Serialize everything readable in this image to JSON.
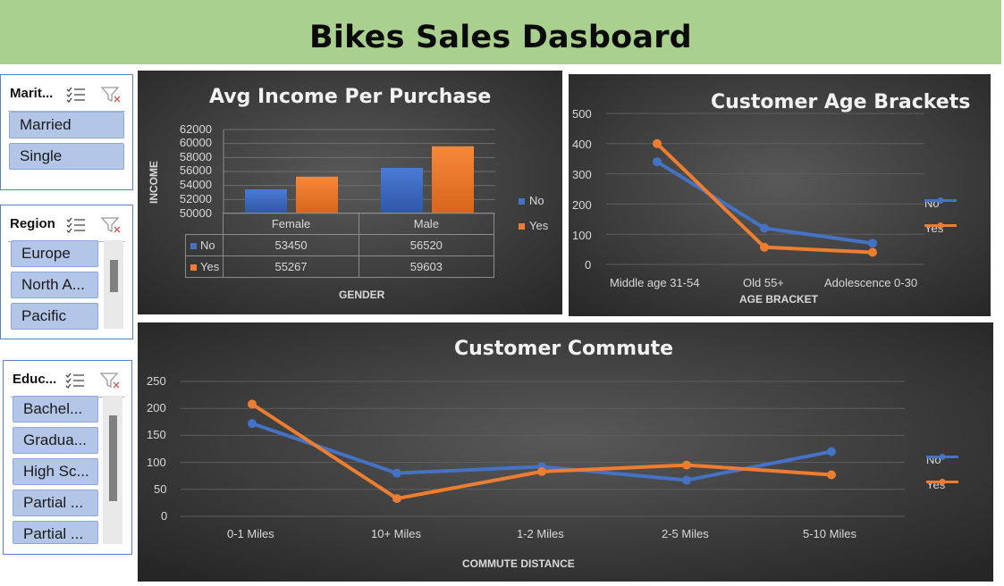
{
  "dashboard": {
    "title": "Bikes Sales Dasboard"
  },
  "slicers": {
    "marital": {
      "title": "Marit...",
      "items": [
        "Married",
        "Single"
      ]
    },
    "region": {
      "title": "Region",
      "items": [
        "Europe",
        "North A...",
        "Pacific"
      ]
    },
    "education": {
      "title": "Educ...",
      "items": [
        "Bachel...",
        "Gradua...",
        "High Sc...",
        "Partial ...",
        "Partial ..."
      ]
    }
  },
  "icons": [
    "multi-select-icon",
    "clear-filter-icon"
  ],
  "colors": {
    "no": "#4472c4",
    "yes": "#ed7d31",
    "banner": "#a9d08e"
  },
  "chart_data": [
    {
      "type": "bar",
      "title": "Avg Income Per Purchase",
      "xlabel": "GENDER",
      "ylabel": "INCOME",
      "categories": [
        "Female",
        "Male"
      ],
      "series": [
        {
          "name": "No",
          "values": [
            53450,
            56520
          ]
        },
        {
          "name": "Yes",
          "values": [
            55267,
            59603
          ]
        }
      ],
      "yticks": [
        "62000",
        "60000",
        "58000",
        "56000",
        "54000",
        "52000",
        "50000"
      ],
      "ylim": [
        50000,
        62000
      ],
      "data_table": true,
      "legend": "right"
    },
    {
      "type": "line",
      "title": "Customer Age Brackets",
      "xlabel": "AGE BRACKET",
      "categories": [
        "Middle age 31-54",
        "Old 55+",
        "Adolescence 0-30"
      ],
      "series": [
        {
          "name": "No",
          "values": [
            340,
            120,
            70
          ]
        },
        {
          "name": "Yes",
          "values": [
            400,
            57,
            40
          ]
        }
      ],
      "yticks": [
        "500",
        "400",
        "300",
        "200",
        "100",
        "0"
      ],
      "ylim": [
        0,
        500
      ],
      "legend": "right"
    },
    {
      "type": "line",
      "title": "Customer Commute",
      "xlabel": "COMMUTE DISTANCE",
      "categories": [
        "0-1 Miles",
        "10+ Miles",
        "1-2 Miles",
        "2-5 Miles",
        "5-10 Miles"
      ],
      "series": [
        {
          "name": "No",
          "values": [
            172,
            80,
            92,
            67,
            120
          ]
        },
        {
          "name": "Yes",
          "values": [
            208,
            33,
            83,
            95,
            77
          ]
        }
      ],
      "yticks": [
        "250",
        "200",
        "150",
        "100",
        "50",
        "0"
      ],
      "ylim": [
        0,
        250
      ],
      "legend": "right"
    }
  ]
}
